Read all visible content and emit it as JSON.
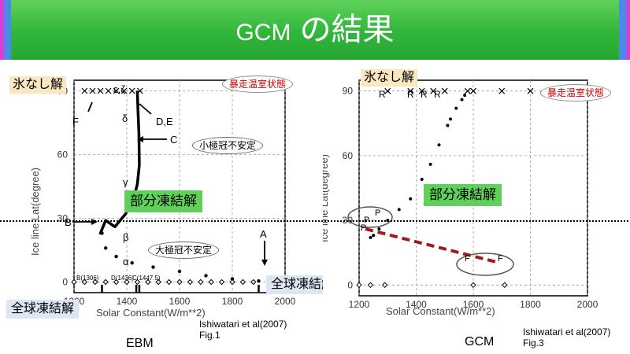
{
  "slide": {
    "title_latin": "GCM",
    "title_rest": "の結果"
  },
  "ebm": {
    "panel_label": "EBM",
    "citation_line1": "Ishiwatari et al(2007)",
    "citation_line2": "Fig.1",
    "label_no_ice": "氷なし解",
    "label_runaway": "暴走温室状態",
    "label_partial": "部分凍結解",
    "label_small_cap": "小極冠不安定",
    "label_large_cap": "大極冠不安定",
    "label_global_ice": "全球凍結解",
    "label_global_ice_right": "全球凍結解",
    "ylabel": "Ice line Lat(degree)",
    "xlabel": "Solar Constant(W/m**2)",
    "points": {
      "eps_zeta": "ε,ζ",
      "F": "F",
      "delta": "δ",
      "DE": "D,E",
      "C": "C",
      "gamma": "γ",
      "B": "B",
      "beta": "β",
      "alpha": "α",
      "A": "A"
    },
    "bottom_labels": {
      "b": "B(1306)",
      "d": "D(1436)",
      "c": "C(1447.5)"
    }
  },
  "gcm": {
    "panel_label": "GCM",
    "citation_line1": "Ishiwatari et al(2007)",
    "citation_line2": "Fig.3",
    "label_no_ice": "氷なし解",
    "label_runaway": "暴走温室状態",
    "label_partial": "部分凍結解",
    "ylabel": "Ice line Lat(degree)",
    "xlabel": "Solar Constant(W/m**2)",
    "marker_R": "R",
    "marker_P": "P",
    "marker_F": "F"
  },
  "chart_data": [
    {
      "type": "line",
      "title": "",
      "xlabel": "Solar Constant(W/m**2)",
      "ylabel": "Ice line Lat(degree)",
      "xlim": [
        1200,
        2000
      ],
      "ylim": [
        -5,
        95
      ],
      "x_ticks": [
        1200,
        1400,
        1600,
        1800,
        2000
      ],
      "y_ticks": [
        0,
        30,
        60,
        90
      ],
      "series": [
        {
          "name": "ε,ζ",
          "x": [
            1240,
            1270,
            1300,
            1330,
            1360,
            1390,
            1420,
            1450
          ],
          "y": [
            90,
            90,
            90,
            90,
            90,
            90,
            90,
            90
          ]
        },
        {
          "name": "δ",
          "x": [
            1440,
            1442,
            1446,
            1447.5,
            1440,
            1425,
            1395,
            1355,
            1320,
            1300,
            1306
          ],
          "y": [
            90,
            82,
            70,
            55,
            46,
            39,
            32,
            26,
            29,
            23,
            23
          ]
        },
        {
          "name": "β",
          "x": [
            1306,
            1320,
            1360,
            1420,
            1500,
            1600,
            1700,
            1800,
            1900
          ],
          "y": [
            23,
            16,
            12,
            9,
            7,
            5,
            3,
            1.5,
            0.5
          ]
        },
        {
          "name": "α",
          "x": [
            1200,
            1240,
            1280,
            1320,
            1360,
            1400,
            1440,
            1480,
            1520,
            1560,
            1600,
            1640,
            1680,
            1720,
            1760,
            1800,
            1840,
            1880
          ],
          "y": [
            0,
            0,
            0,
            0,
            0,
            0,
            0,
            0,
            0,
            0,
            0,
            0,
            0,
            0,
            0,
            0,
            0,
            0
          ]
        }
      ]
    },
    {
      "type": "scatter",
      "title": "",
      "xlabel": "Solar Constant(W/m**2)",
      "ylabel": "Ice line Lat(degree)",
      "xlim": [
        1200,
        2000
      ],
      "ylim": [
        -5,
        95
      ],
      "x_ticks": [
        1200,
        1400,
        1600,
        1800,
        2000
      ],
      "y_ticks": [
        0,
        30,
        60,
        90
      ],
      "series": [
        {
          "name": "ice-free",
          "x": [
            1300,
            1380,
            1420,
            1460,
            1500,
            1580,
            1600,
            1700,
            1800,
            1900
          ],
          "y": [
            90,
            90,
            90,
            90,
            90,
            90,
            90,
            90,
            90,
            90
          ]
        },
        {
          "name": "partial",
          "x": [
            1240,
            1250,
            1270,
            1300,
            1340,
            1380,
            1420,
            1450,
            1480,
            1510,
            1520,
            1540,
            1560,
            1570
          ],
          "y": [
            22,
            23,
            26,
            30,
            35,
            40,
            49,
            56,
            65,
            74,
            77,
            82,
            86,
            88
          ]
        },
        {
          "name": "global ice",
          "x": [
            1200,
            1240,
            1290,
            1600,
            1710
          ],
          "y": [
            0,
            0,
            0,
            0,
            0
          ]
        }
      ]
    }
  ]
}
